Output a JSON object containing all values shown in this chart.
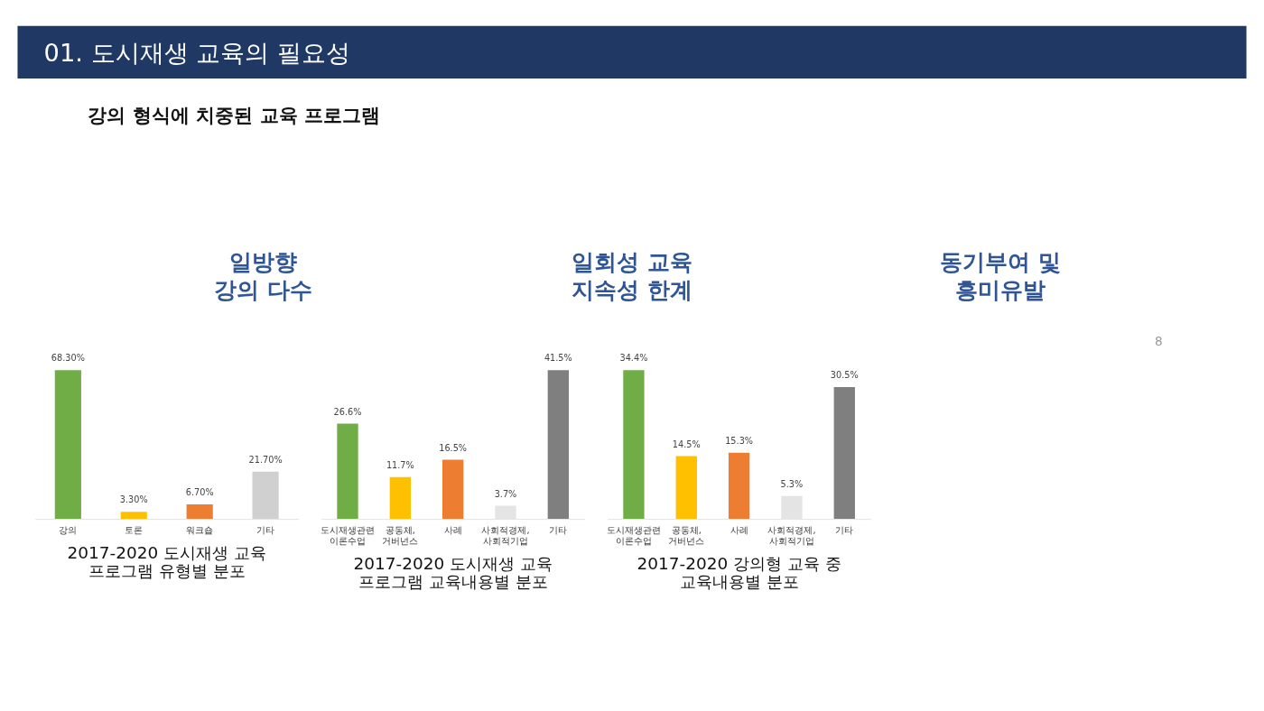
{
  "chart_data": [
    {
      "type": "other",
      "title": "01. 도시재생 교육의 필요성",
      "subtitle": "강의 형식에 치중된 교육 프로그램",
      "annotations": [
        "일방향\n강의 다수",
        "일회성 교육\n지속성 한계",
        "동기부여 및\n흥미유발",
        "8"
      ]
    },
    {
      "type": "bar",
      "title": "2017-2020 도시재생 교육\n프로그램 유형별 분포",
      "categories": [
        "강의",
        "토론",
        "워크숍",
        "기타"
      ],
      "values": [
        68.3,
        3.3,
        6.7,
        21.7
      ],
      "value_labels": [
        "68.30%",
        "3.30%",
        "6.70%",
        "21.70%"
      ],
      "colors": [
        "#70ad47",
        "#ffc000",
        "#ed7d31",
        "#d0d0d0"
      ]
    },
    {
      "type": "bar",
      "title": "2017-2020 도시재생 교육\n프로그램 교육내용별 분포",
      "categories": [
        "도시재생관련\n이론수업",
        "공동체,\n거버넌스",
        "사례",
        "사회적경제,\n사회적기업",
        "기타"
      ],
      "values": [
        26.6,
        11.7,
        16.5,
        3.7,
        41.5
      ],
      "value_labels": [
        "26.6%",
        "11.7%",
        "16.5%",
        "3.7%",
        "41.5%"
      ],
      "colors": [
        "#70ad47",
        "#ffc000",
        "#ed7d31",
        "#e4e4e4",
        "#7f7f7f"
      ]
    },
    {
      "type": "bar",
      "title": "2017-2020 강의형 교육 중\n교육내용별 분포",
      "categories": [
        "도시재생관련\n이론수업",
        "공동체,\n거버넌스",
        "사례",
        "사회적경제,\n사회적기업",
        "기타"
      ],
      "values": [
        34.4,
        14.5,
        15.3,
        5.3,
        30.5
      ],
      "value_labels": [
        "34.4%",
        "14.5%",
        "15.3%",
        "5.3%",
        "30.5%"
      ],
      "colors": [
        "#70ad47",
        "#ffc000",
        "#ed7d31",
        "#e4e4e4",
        "#7f7f7f"
      ]
    }
  ]
}
